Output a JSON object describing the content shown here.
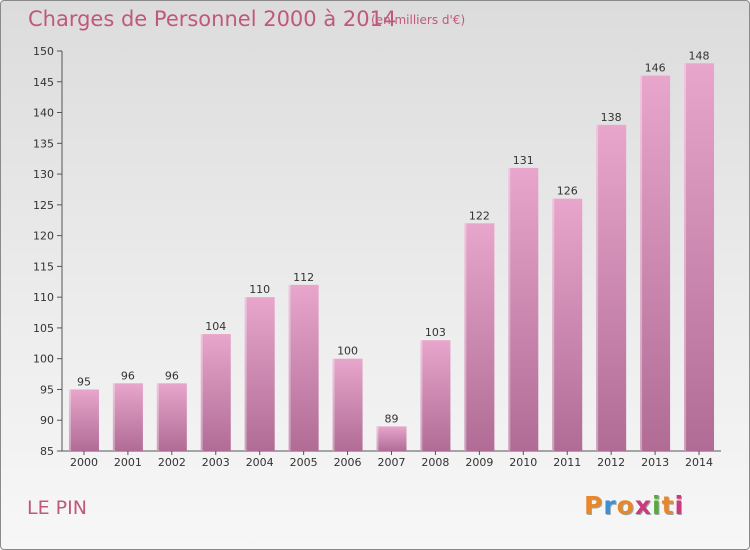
{
  "header": {
    "title": "Charges de Personnel 2000 à 2014",
    "subtitle": "(en milliers d'€)"
  },
  "footer": {
    "commune": "LE PIN",
    "brand": "Proxiti"
  },
  "colors": {
    "title": "#c0587e",
    "bar_top": "#e8a6cc",
    "bar_bottom": "#b06c95",
    "logo": [
      "#e8862b",
      "#3a8fd6",
      "#e8862b",
      "#cc3a7a",
      "#5aaa3a",
      "#e8862b",
      "#cc3a7a"
    ]
  },
  "chart_data": {
    "type": "bar",
    "categories": [
      "2000",
      "2001",
      "2002",
      "2003",
      "2004",
      "2005",
      "2006",
      "2007",
      "2008",
      "2009",
      "2010",
      "2011",
      "2012",
      "2013",
      "2014"
    ],
    "values": [
      95,
      96,
      96,
      104,
      110,
      112,
      100,
      89,
      103,
      122,
      131,
      126,
      138,
      146,
      148
    ],
    "ylim": [
      85,
      150
    ],
    "yticks": [
      85,
      90,
      95,
      100,
      105,
      110,
      115,
      120,
      125,
      130,
      135,
      140,
      145,
      150
    ],
    "grid": false
  }
}
